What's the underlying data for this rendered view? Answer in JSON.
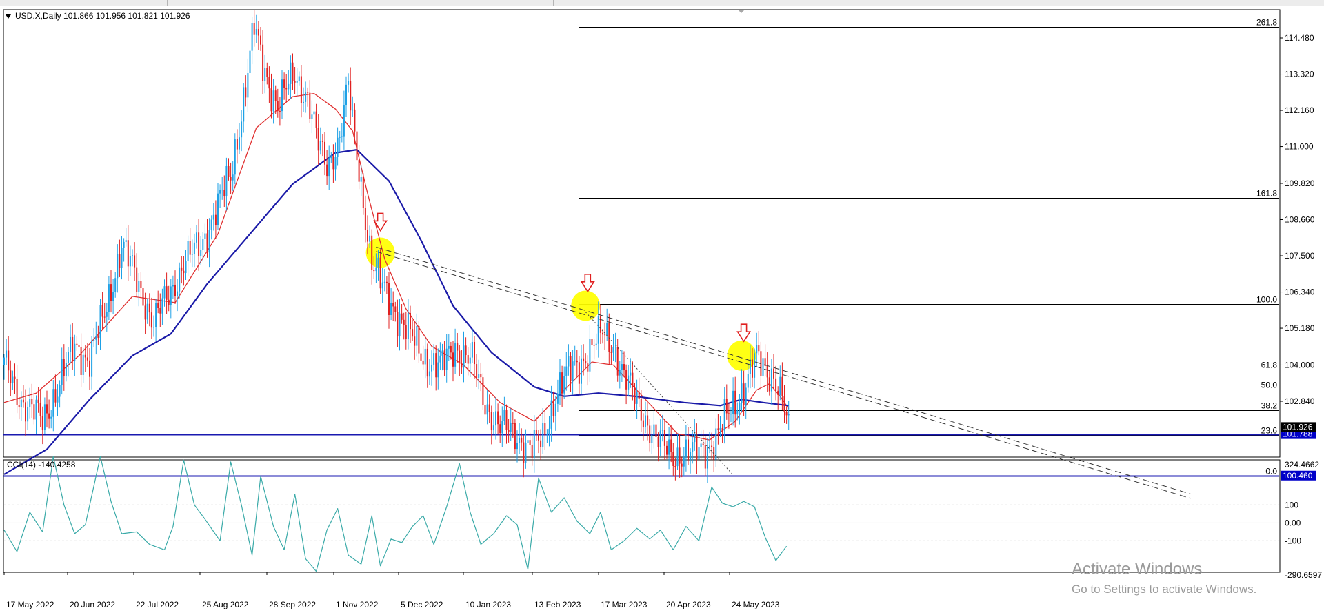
{
  "header": {
    "symbol_line": "USD.X,Daily  101.866 101.956 101.821 101.926",
    "cci_label": "CCI(14) -140.4258"
  },
  "watermark": {
    "title": "Activate Windows",
    "subtitle": "Go to Settings to activate Windows."
  },
  "colors": {
    "bull": "#1ea1e6",
    "bear": "#e02020",
    "ma_fast": "#e03030",
    "ma_slow": "#1a1aa8",
    "cci": "#3aaaa8",
    "fib": "#000000",
    "support": "#1a1ab0",
    "highlight": "#ffff00",
    "arrow": "#e02020",
    "badge": "#0000c8"
  },
  "chart_data": [
    {
      "type": "candlestick",
      "symbol": "USD.X",
      "timeframe": "Daily",
      "ohlc_last": {
        "open": 101.866,
        "high": 101.956,
        "low": 101.821,
        "close": 101.926
      },
      "ylim": [
        99.8,
        115.6
      ],
      "y_ticks": [
        114.48,
        113.32,
        112.16,
        111.0,
        109.82,
        108.66,
        107.5,
        106.34,
        105.18,
        104.0,
        102.84
      ],
      "y_tick_labels": [
        "114.480",
        "113.320",
        "112.160",
        "111.000",
        "109.820",
        "108.660",
        "107.500",
        "106.340",
        "105.180",
        "104.000",
        "102.840"
      ],
      "x_labels": [
        "17 May 2022",
        "20 Jun 2022",
        "22 Jul 2022",
        "25 Aug 2022",
        "28 Sep 2022",
        "1 Nov 2022",
        "5 Dec 2022",
        "10 Jan 2023",
        "13 Feb 2023",
        "17 Mar 2023",
        "20 Apr 2023",
        "24 May 2023"
      ],
      "close_path": [
        [
          0,
          104.0
        ],
        [
          8,
          102.9
        ],
        [
          18,
          102.2
        ],
        [
          25,
          103.3
        ],
        [
          33,
          104.6
        ],
        [
          40,
          104.2
        ],
        [
          47,
          105.6
        ],
        [
          55,
          107.9
        ],
        [
          62,
          106.7
        ],
        [
          70,
          105.4
        ],
        [
          77,
          106.2
        ],
        [
          84,
          107.3
        ],
        [
          92,
          107.8
        ],
        [
          99,
          109.0
        ],
        [
          106,
          110.0
        ],
        [
          113,
          113.0
        ],
        [
          117,
          114.8
        ],
        [
          121,
          113.6
        ],
        [
          128,
          112.3
        ],
        [
          136,
          113.3
        ],
        [
          142,
          112.6
        ],
        [
          147,
          111.0
        ],
        [
          151,
          110.4
        ],
        [
          157,
          111.3
        ],
        [
          161,
          112.9
        ],
        [
          163,
          111.7
        ],
        [
          168,
          109.3
        ],
        [
          172,
          107.3
        ],
        [
          176,
          106.6
        ],
        [
          183,
          105.8
        ],
        [
          190,
          104.9
        ],
        [
          196,
          104.3
        ],
        [
          204,
          103.9
        ],
        [
          211,
          104.6
        ],
        [
          219,
          104.1
        ],
        [
          225,
          102.8
        ],
        [
          232,
          102.0
        ],
        [
          239,
          101.8
        ],
        [
          247,
          101.3
        ],
        [
          252,
          101.6
        ],
        [
          258,
          103.1
        ],
        [
          265,
          103.8
        ],
        [
          272,
          104.3
        ],
        [
          280,
          105.0
        ],
        [
          285,
          104.7
        ],
        [
          290,
          103.6
        ],
        [
          298,
          102.6
        ],
        [
          305,
          101.6
        ],
        [
          312,
          101.2
        ],
        [
          320,
          101.1
        ],
        [
          328,
          101.4
        ],
        [
          333,
          101.6
        ],
        [
          340,
          102.6
        ],
        [
          347,
          103.4
        ],
        [
          352,
          104.2
        ],
        [
          356,
          103.9
        ],
        [
          360,
          103.7
        ],
        [
          364,
          102.9
        ],
        [
          367,
          101.8
        ]
      ],
      "moving_averages": [
        {
          "role": "fast",
          "values": [
            [
              0,
              102.8
            ],
            [
              15,
              103.1
            ],
            [
              35,
              104.3
            ],
            [
              60,
              106.2
            ],
            [
              80,
              106.0
            ],
            [
              100,
              108.2
            ],
            [
              118,
              111.6
            ],
            [
              135,
              112.6
            ],
            [
              145,
              112.7
            ],
            [
              155,
              112.2
            ],
            [
              163,
              111.5
            ],
            [
              170,
              109.5
            ],
            [
              178,
              107.4
            ],
            [
              188,
              105.8
            ],
            [
              200,
              104.6
            ],
            [
              215,
              104.0
            ],
            [
              232,
              102.8
            ],
            [
              248,
              102.2
            ],
            [
              262,
              103.2
            ],
            [
              275,
              104.1
            ],
            [
              285,
              104.0
            ],
            [
              300,
              102.9
            ],
            [
              315,
              101.8
            ],
            [
              330,
              101.6
            ],
            [
              342,
              102.2
            ],
            [
              352,
              103.2
            ],
            [
              358,
              103.4
            ],
            [
              363,
              103.0
            ],
            [
              367,
              102.6
            ]
          ]
        },
        {
          "role": "slow",
          "values": [
            [
              0,
              100.5
            ],
            [
              20,
              101.3
            ],
            [
              40,
              102.9
            ],
            [
              60,
              104.3
            ],
            [
              78,
              105.0
            ],
            [
              95,
              106.6
            ],
            [
              115,
              108.2
            ],
            [
              135,
              109.8
            ],
            [
              155,
              110.8
            ],
            [
              165,
              110.9
            ],
            [
              180,
              109.9
            ],
            [
              195,
              108.0
            ],
            [
              210,
              105.9
            ],
            [
              228,
              104.4
            ],
            [
              248,
              103.3
            ],
            [
              262,
              103.0
            ],
            [
              278,
              103.1
            ],
            [
              295,
              103.0
            ],
            [
              318,
              102.8
            ],
            [
              335,
              102.7
            ],
            [
              345,
              102.9
            ],
            [
              355,
              102.8
            ],
            [
              367,
              102.7
            ]
          ]
        }
      ],
      "fibonacci": {
        "from_value": 100.46,
        "to_value": 105.955,
        "levels": [
          {
            "label": "261.8",
            "value": 114.84
          },
          {
            "label": "161.8",
            "value": 109.35
          },
          {
            "label": "100.0",
            "value": 105.955
          },
          {
            "label": "61.8",
            "value": 103.858
          },
          {
            "label": "50.0",
            "value": 103.208
          },
          {
            "label": "38.2",
            "value": 102.559
          },
          {
            "label": "23.6",
            "value": 101.757
          },
          {
            "label": "0.0",
            "value": 100.46
          }
        ]
      },
      "horizontal_lines": [
        {
          "value": 101.788,
          "label": "101.788"
        },
        {
          "value": 100.46,
          "label": "100.460"
        }
      ],
      "price_badge": {
        "value": 101.926,
        "label": "101.926"
      },
      "trendlines": [
        {
          "style": "dashed",
          "from": [
            174,
            107.78
          ],
          "to": [
            555,
            99.87
          ]
        },
        {
          "style": "dashed",
          "from": [
            174,
            107.64
          ],
          "to": [
            555,
            99.73
          ]
        },
        {
          "style": "dotted",
          "from": [
            272,
            105.7
          ],
          "to": [
            341,
            100.48
          ]
        }
      ],
      "highlights": [
        [
          176,
          107.6
        ],
        [
          272,
          105.9
        ],
        [
          345,
          104.3
        ]
      ],
      "arrows": [
        [
          176,
          108.55
        ],
        [
          273,
          106.6
        ],
        [
          346,
          105.0
        ]
      ]
    },
    {
      "type": "line",
      "indicator": "CCI(14)",
      "current": -140.4258,
      "ylim": [
        -290.6597,
        324.4662
      ],
      "y_tick_labels": [
        "324.4662",
        "100",
        "0.00",
        "-100",
        "-290.6597"
      ],
      "reference_levels": [
        100,
        -100
      ],
      "values": [
        [
          0,
          -40
        ],
        [
          6,
          -160
        ],
        [
          12,
          60
        ],
        [
          18,
          -50
        ],
        [
          23,
          370
        ],
        [
          28,
          100
        ],
        [
          33,
          -60
        ],
        [
          38,
          -10
        ],
        [
          45,
          370
        ],
        [
          50,
          120
        ],
        [
          55,
          -60
        ],
        [
          62,
          -50
        ],
        [
          68,
          -120
        ],
        [
          75,
          -150
        ],
        [
          79,
          -20
        ],
        [
          84,
          350
        ],
        [
          89,
          100
        ],
        [
          94,
          20
        ],
        [
          101,
          -100
        ],
        [
          106,
          340
        ],
        [
          111,
          100
        ],
        [
          116,
          -180
        ],
        [
          120,
          260
        ],
        [
          126,
          -20
        ],
        [
          131,
          -150
        ],
        [
          136,
          160
        ],
        [
          141,
          -200
        ],
        [
          146,
          -270
        ],
        [
          151,
          -40
        ],
        [
          156,
          80
        ],
        [
          161,
          -180
        ],
        [
          167,
          -230
        ],
        [
          172,
          40
        ],
        [
          176,
          -240
        ],
        [
          181,
          -90
        ],
        [
          186,
          -110
        ],
        [
          191,
          -20
        ],
        [
          196,
          40
        ],
        [
          201,
          -120
        ],
        [
          207,
          90
        ],
        [
          213,
          330
        ],
        [
          218,
          60
        ],
        [
          223,
          -120
        ],
        [
          229,
          -60
        ],
        [
          235,
          40
        ],
        [
          240,
          -10
        ],
        [
          245,
          -260
        ],
        [
          250,
          250
        ],
        [
          256,
          60
        ],
        [
          262,
          140
        ],
        [
          268,
          10
        ],
        [
          274,
          -60
        ],
        [
          279,
          60
        ],
        [
          284,
          -150
        ],
        [
          290,
          -100
        ],
        [
          296,
          -30
        ],
        [
          302,
          -90
        ],
        [
          307,
          -40
        ],
        [
          313,
          -150
        ],
        [
          319,
          -20
        ],
        [
          325,
          -100
        ],
        [
          331,
          200
        ],
        [
          336,
          110
        ],
        [
          341,
          90
        ],
        [
          346,
          120
        ],
        [
          351,
          90
        ],
        [
          356,
          -80
        ],
        [
          361,
          -210
        ],
        [
          366,
          -130
        ]
      ]
    }
  ]
}
